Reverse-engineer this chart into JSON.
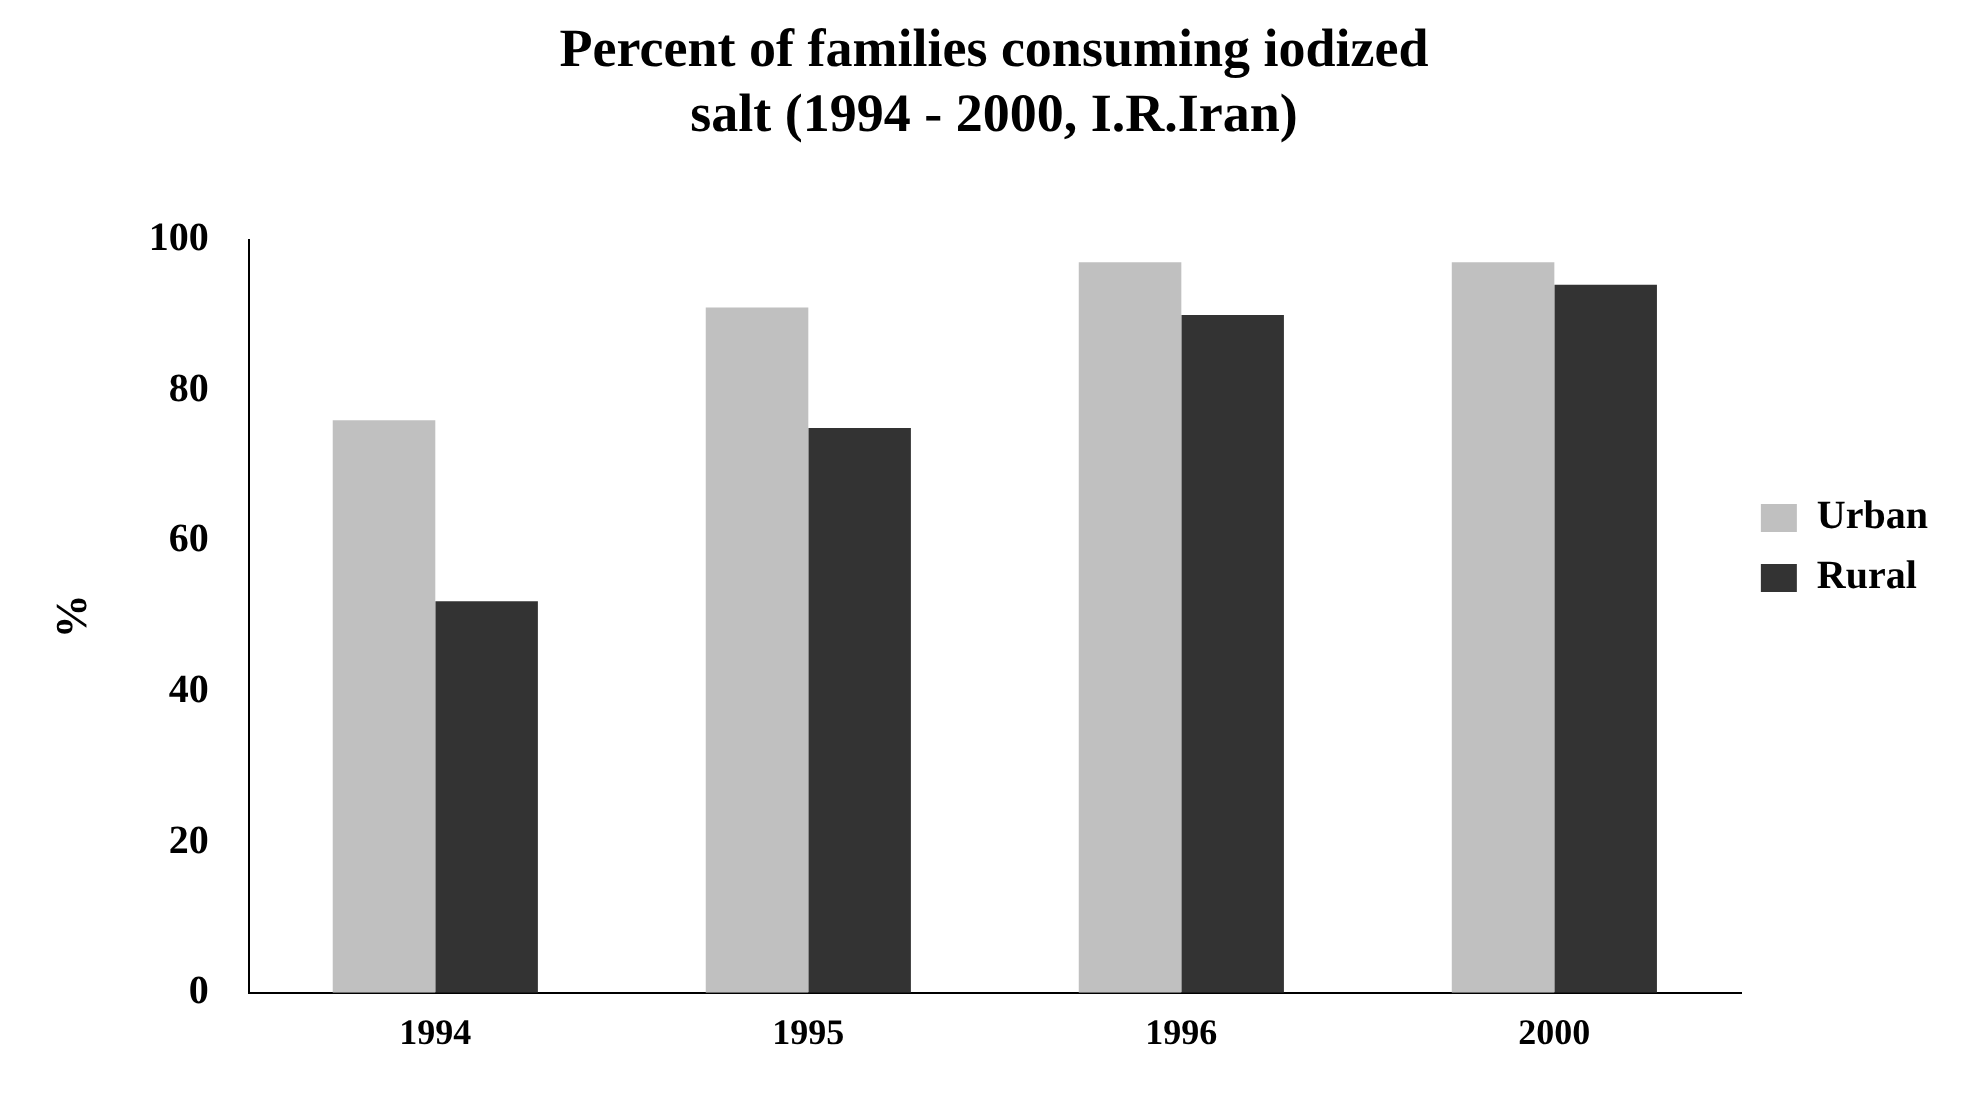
{
  "chart_data": {
    "type": "bar",
    "title": [
      "Percent of families consuming iodized",
      "salt (1994 - 2000, I.R.Iran)"
    ],
    "ylabel": "%",
    "categories": [
      "1994",
      "1995",
      "1996",
      "2000"
    ],
    "series": [
      {
        "name": "Urban",
        "color": "#c0c0c0",
        "values": [
          76,
          91,
          97,
          97
        ]
      },
      {
        "name": "Rural",
        "color": "#333333",
        "values": [
          52,
          75,
          90,
          94
        ]
      }
    ],
    "ylim": [
      0,
      100
    ],
    "yticks": [
      0,
      20,
      40,
      60,
      80,
      100
    ],
    "grid": false,
    "legend": "right"
  }
}
